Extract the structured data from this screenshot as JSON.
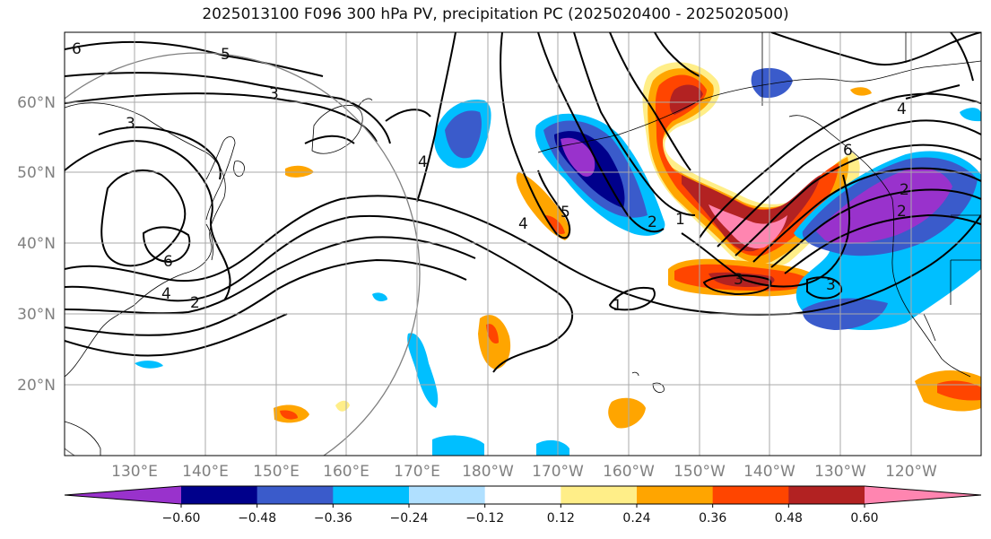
{
  "title": "2025013100 F096 300 hPa PV, precipitation PC (2025020400 - 2025020500)",
  "lat_labels": [
    "60°N",
    "50°N",
    "40°N",
    "30°N",
    "20°N"
  ],
  "lon_labels": [
    "130°E",
    "140°E",
    "150°E",
    "160°E",
    "170°E",
    "180°W",
    "170°W",
    "160°W",
    "150°W",
    "140°W",
    "130°W",
    "120°W"
  ],
  "colorbar": {
    "ticks": [
      "−0.60",
      "−0.48",
      "−0.36",
      "−0.24",
      "−0.12",
      "0.12",
      "0.24",
      "0.36",
      "0.48",
      "0.60"
    ],
    "colors": [
      "#9932cc",
      "#00008b",
      "#3a5bcb",
      "#00bfff",
      "#b0e0ff",
      "#ffffff",
      "#ffee88",
      "#ffa500",
      "#ff4500",
      "#b22222",
      "#ff85b0"
    ]
  },
  "contour_labels": [
    "6",
    "5",
    "3",
    "3",
    "6",
    "4",
    "2",
    "5",
    "4",
    "2",
    "1",
    "2",
    "2",
    "3",
    "3",
    "1",
    "4",
    "6",
    "4"
  ],
  "colors": {
    "contour": "#000000",
    "grid": "#aaaaaa",
    "range_circle": "#808080"
  }
}
